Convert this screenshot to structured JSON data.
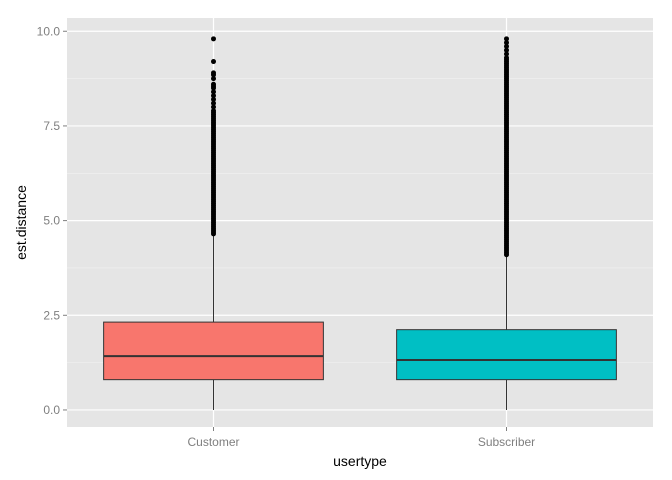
{
  "chart_data": {
    "type": "boxplot",
    "xlabel": "usertype",
    "ylabel": "est.distance",
    "ylim": [
      -0.45,
      10.35
    ],
    "yticks": [
      0.0,
      2.5,
      5.0,
      7.5,
      10.0
    ],
    "ytick_labels": [
      "0.0",
      "2.5",
      "5.0",
      "7.5",
      "10.0"
    ],
    "grid": true,
    "legend": "none",
    "categories": [
      "Customer",
      "Subscriber"
    ],
    "boxes": [
      {
        "category": "Customer",
        "color": "#F8766D",
        "whisker_low": 0.0,
        "q1": 0.8,
        "median": 1.42,
        "q3": 2.32,
        "whisker_high": 4.6,
        "outliers": [
          4.65,
          4.7,
          4.75,
          4.8,
          4.85,
          4.9,
          4.95,
          5.0,
          5.05,
          5.1,
          5.15,
          5.2,
          5.25,
          5.3,
          5.35,
          5.4,
          5.45,
          5.5,
          5.55,
          5.6,
          5.65,
          5.7,
          5.75,
          5.8,
          5.85,
          5.9,
          5.95,
          6.0,
          6.05,
          6.1,
          6.15,
          6.2,
          6.25,
          6.3,
          6.35,
          6.4,
          6.45,
          6.5,
          6.55,
          6.6,
          6.65,
          6.7,
          6.75,
          6.8,
          6.85,
          6.9,
          6.95,
          7.0,
          7.05,
          7.1,
          7.15,
          7.2,
          7.25,
          7.3,
          7.35,
          7.4,
          7.45,
          7.5,
          7.55,
          7.6,
          7.65,
          7.7,
          7.75,
          7.8,
          7.85,
          7.9,
          8.0,
          8.1,
          8.2,
          8.3,
          8.4,
          8.5,
          8.55,
          8.6,
          8.75,
          8.85,
          8.9,
          9.2,
          9.8
        ]
      },
      {
        "category": "Subscriber",
        "color": "#00BFC4",
        "whisker_low": 0.0,
        "q1": 0.8,
        "median": 1.32,
        "q3": 2.12,
        "whisker_high": 4.1,
        "outliers": [
          4.1,
          4.15,
          4.2,
          4.25,
          4.3,
          4.35,
          4.4,
          4.45,
          4.5,
          4.55,
          4.6,
          4.65,
          4.7,
          4.75,
          4.8,
          4.85,
          4.9,
          4.95,
          5.0,
          5.05,
          5.1,
          5.15,
          5.2,
          5.25,
          5.3,
          5.35,
          5.4,
          5.45,
          5.5,
          5.55,
          5.6,
          5.65,
          5.7,
          5.75,
          5.8,
          5.85,
          5.9,
          5.95,
          6.0,
          6.05,
          6.1,
          6.15,
          6.2,
          6.25,
          6.3,
          6.35,
          6.4,
          6.45,
          6.5,
          6.55,
          6.6,
          6.65,
          6.7,
          6.75,
          6.8,
          6.85,
          6.9,
          6.95,
          7.0,
          7.05,
          7.1,
          7.15,
          7.2,
          7.25,
          7.3,
          7.35,
          7.4,
          7.45,
          7.5,
          7.55,
          7.6,
          7.65,
          7.7,
          7.75,
          7.8,
          7.85,
          7.9,
          7.95,
          8.0,
          8.05,
          8.1,
          8.15,
          8.2,
          8.25,
          8.3,
          8.35,
          8.4,
          8.45,
          8.5,
          8.55,
          8.6,
          8.65,
          8.7,
          8.75,
          8.8,
          8.85,
          8.9,
          8.95,
          9.0,
          9.05,
          9.1,
          9.15,
          9.2,
          9.25,
          9.3,
          9.4,
          9.5,
          9.6,
          9.7,
          9.8
        ]
      }
    ]
  }
}
